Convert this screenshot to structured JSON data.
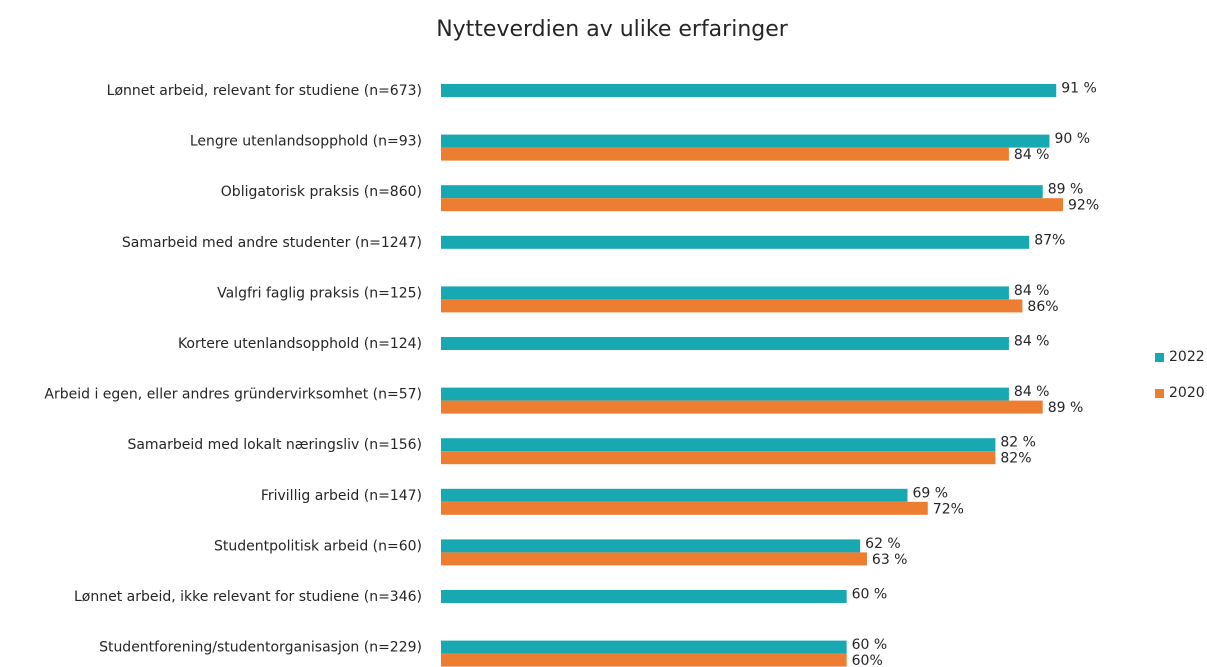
{
  "chart_data": {
    "type": "hbar",
    "title": "Nytteverdien av ulike erfaringer",
    "categories": [
      "Lønnet arbeid, relevant for studiene (n=673)",
      "Lengre utenlandsopphold (n=93)",
      "Obligatorisk praksis (n=860)",
      "Samarbeid med andre studenter (n=1247)",
      "Valgfri faglig praksis (n=125)",
      "Kortere utenlandsopphold (n=124)",
      "Arbeid i egen, eller andres gründervirksomhet (n=57)",
      "Samarbeid med lokalt næringsliv (n=156)",
      "Frivillig arbeid (n=147)",
      "Studentpolitisk arbeid (n=60)",
      "Lønnet arbeid, ikke relevant for studiene (n=346)",
      "Studentforening/studentorganisasjon (n=229)"
    ],
    "series": [
      {
        "name": "2022",
        "color": "#17a8b2",
        "values": [
          91,
          90,
          89,
          87,
          84,
          84,
          84,
          82,
          69,
          62,
          60,
          60
        ],
        "value_labels": [
          "91 %",
          "90 %",
          "89 %",
          "87%",
          "84 %",
          "84 %",
          "84 %",
          "82 %",
          "69 %",
          "62 %",
          "60 %",
          "60 %"
        ]
      },
      {
        "name": "2020",
        "color": "#ed7d31",
        "values": [
          null,
          84,
          92,
          null,
          86,
          null,
          89,
          82,
          72,
          63,
          null,
          60
        ],
        "value_labels": [
          null,
          "84 %",
          "92%",
          null,
          "86%",
          null,
          "89 %",
          "82%",
          "72%",
          "63 %",
          null,
          "60%"
        ]
      }
    ],
    "legend": "right"
  }
}
